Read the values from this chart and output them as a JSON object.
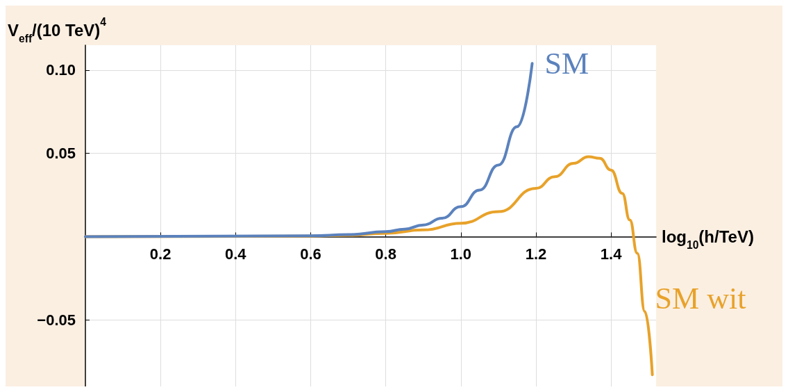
{
  "chart_data": {
    "type": "line",
    "xlabel": "log$_{10}$(h/TeV)",
    "ylabel": "V$_{eff}$/(10 TeV)$^{4}$",
    "xlim": [
      0,
      1.52
    ],
    "ylim": [
      -0.09,
      0.115
    ],
    "xticks": [
      {
        "value": 0.2,
        "label": "0.2"
      },
      {
        "value": 0.4,
        "label": "0.4"
      },
      {
        "value": 0.6,
        "label": "0.6"
      },
      {
        "value": 0.8,
        "label": "0.8"
      },
      {
        "value": 1.0,
        "label": "1.0"
      },
      {
        "value": 1.2,
        "label": "1.2"
      },
      {
        "value": 1.4,
        "label": "1.4"
      }
    ],
    "yticks": [
      {
        "value": -0.05,
        "label": "−0.05"
      },
      {
        "value": 0.05,
        "label": "0.05"
      },
      {
        "value": 0.1,
        "label": "0.10"
      }
    ],
    "grid": true,
    "legend": false,
    "marker": "none",
    "line_style": "solid",
    "series": [
      {
        "name": "SM",
        "color": "#5b82bd",
        "x": [
          0,
          0.6,
          0.7,
          0.8,
          0.85,
          0.9,
          0.95,
          1.0,
          1.05,
          1.1,
          1.15,
          1.19
        ],
        "values": [
          0,
          0.0005,
          0.0012,
          0.003,
          0.0045,
          0.007,
          0.011,
          0.018,
          0.028,
          0.043,
          0.066,
          0.104
        ]
      },
      {
        "name": "SM wit",
        "color": "#e8a22a",
        "x": [
          0,
          0.6,
          0.7,
          0.8,
          0.9,
          1.0,
          1.1,
          1.2,
          1.25,
          1.3,
          1.34,
          1.37,
          1.4,
          1.43,
          1.45,
          1.47,
          1.49,
          1.51
        ],
        "values": [
          0,
          0.0003,
          0.0008,
          0.002,
          0.004,
          0.008,
          0.015,
          0.029,
          0.036,
          0.044,
          0.048,
          0.047,
          0.04,
          0.026,
          0.01,
          -0.01,
          -0.045,
          -0.083
        ]
      }
    ]
  }
}
